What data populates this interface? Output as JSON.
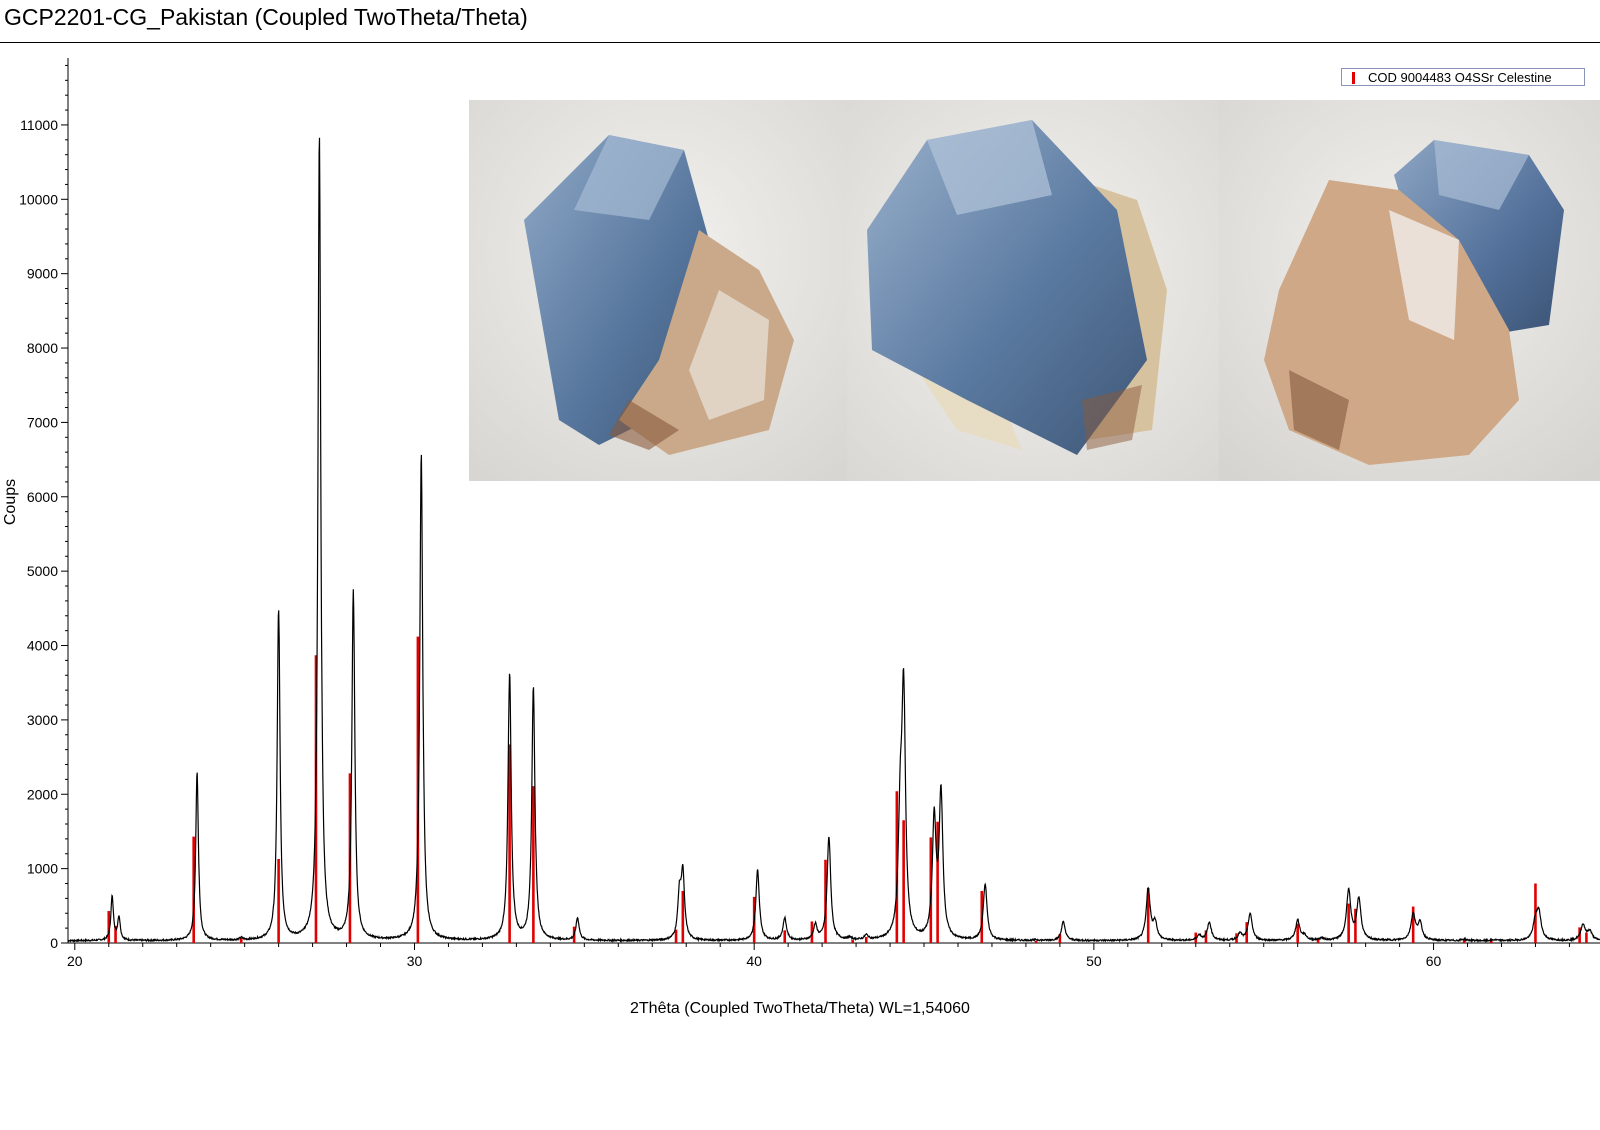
{
  "header": {
    "title": "GCP2201-CG_Pakistan (Coupled TwoTheta/Theta)"
  },
  "chart_data": {
    "type": "line",
    "title": "GCP2201-CG_Pakistan (Coupled TwoTheta/Theta)",
    "xlabel": "2Thêta (Coupled TwoTheta/Theta) WL=1,54060",
    "ylabel": "Coups",
    "xlim": [
      19.8,
      64.9
    ],
    "ylim": [
      0,
      11900
    ],
    "xticks": [
      20,
      30,
      40,
      50,
      60
    ],
    "yticks": [
      0,
      1000,
      2000,
      3000,
      4000,
      5000,
      6000,
      7000,
      8000,
      9000,
      10000,
      11000
    ],
    "grid": false,
    "legend": {
      "position": "top-right",
      "label": "COD 9004483 O4SSr Celestine",
      "color": "#e00000"
    },
    "baseline": 30,
    "series": [
      {
        "kind": "measured-pattern",
        "color": "#000000",
        "peaks": [
          [
            21.1,
            620
          ],
          [
            21.3,
            340
          ],
          [
            23.6,
            2300
          ],
          [
            24.9,
            60
          ],
          [
            26.0,
            4480
          ],
          [
            27.2,
            10870
          ],
          [
            28.2,
            4720
          ],
          [
            30.2,
            6580
          ],
          [
            32.8,
            3620
          ],
          [
            33.5,
            3420
          ],
          [
            34.8,
            330
          ],
          [
            37.8,
            600
          ],
          [
            37.9,
            900
          ],
          [
            40.1,
            980
          ],
          [
            40.9,
            330
          ],
          [
            41.8,
            230
          ],
          [
            42.2,
            1420
          ],
          [
            42.8,
            60
          ],
          [
            43.3,
            90
          ],
          [
            44.3,
            1500
          ],
          [
            44.4,
            3240
          ],
          [
            45.3,
            1620
          ],
          [
            45.5,
            1960
          ],
          [
            46.8,
            780
          ],
          [
            48.3,
            40
          ],
          [
            49.1,
            280
          ],
          [
            51.6,
            720
          ],
          [
            51.8,
            260
          ],
          [
            53.1,
            100
          ],
          [
            53.4,
            270
          ],
          [
            54.3,
            120
          ],
          [
            54.6,
            390
          ],
          [
            56.0,
            300
          ],
          [
            56.2,
            90
          ],
          [
            56.7,
            60
          ],
          [
            57.5,
            700
          ],
          [
            57.8,
            580
          ],
          [
            59.4,
            380
          ],
          [
            59.6,
            260
          ],
          [
            60.9,
            50
          ],
          [
            61.8,
            40
          ],
          [
            63.0,
            260
          ],
          [
            63.1,
            380
          ],
          [
            64.4,
            240
          ],
          [
            64.6,
            150
          ]
        ]
      },
      {
        "kind": "reference-sticks",
        "name": "COD 9004483 O4SSr Celestine",
        "color": "#e00000",
        "sticks": [
          [
            21.0,
            430
          ],
          [
            21.2,
            230
          ],
          [
            23.5,
            1430
          ],
          [
            24.9,
            70
          ],
          [
            26.0,
            1130
          ],
          [
            27.1,
            3870
          ],
          [
            28.1,
            2280
          ],
          [
            30.1,
            4120
          ],
          [
            32.8,
            2670
          ],
          [
            33.5,
            2110
          ],
          [
            34.7,
            220
          ],
          [
            37.7,
            180
          ],
          [
            37.9,
            700
          ],
          [
            40.0,
            620
          ],
          [
            40.9,
            170
          ],
          [
            41.7,
            290
          ],
          [
            42.1,
            1120
          ],
          [
            42.9,
            40
          ],
          [
            43.3,
            80
          ],
          [
            44.2,
            2040
          ],
          [
            44.4,
            1650
          ],
          [
            45.2,
            1420
          ],
          [
            45.4,
            1630
          ],
          [
            46.7,
            700
          ],
          [
            48.3,
            30
          ],
          [
            49.0,
            120
          ],
          [
            51.6,
            740
          ],
          [
            53.0,
            140
          ],
          [
            53.3,
            170
          ],
          [
            54.2,
            130
          ],
          [
            54.5,
            280
          ],
          [
            56.0,
            260
          ],
          [
            56.6,
            60
          ],
          [
            57.5,
            530
          ],
          [
            57.7,
            460
          ],
          [
            59.4,
            490
          ],
          [
            60.9,
            60
          ],
          [
            61.7,
            30
          ],
          [
            63.0,
            800
          ],
          [
            64.3,
            210
          ],
          [
            64.5,
            140
          ]
        ]
      }
    ]
  },
  "photos": [
    {
      "subject": "celestine-crystal-view-1",
      "crystal": "#6f8fb3",
      "matrix": "#c9a98a"
    },
    {
      "subject": "celestine-crystal-view-2",
      "crystal": "#6e8cb0",
      "matrix": "#d7c2a0"
    },
    {
      "subject": "celestine-crystal-view-3",
      "crystal": "#5f7ea6",
      "matrix": "#cfa987"
    }
  ]
}
